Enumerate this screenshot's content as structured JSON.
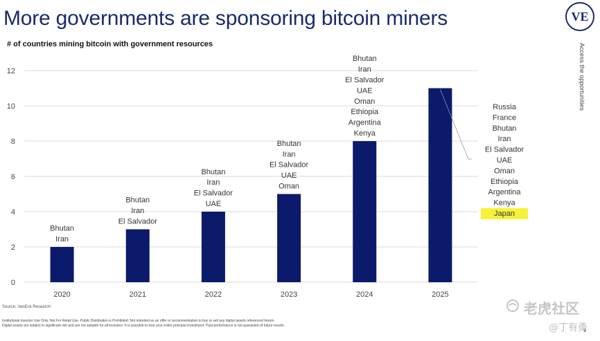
{
  "slide": {
    "title": "More governments are sponsoring bitcoin miners",
    "logo_text": "VE",
    "side_text": "Access the opportunities",
    "source": "Source: VanEck Research",
    "disclaimer_line1": "Institutional Investor Use Only. Not For Retail Use. Public Distribution is Prohibited. Not intended as an offer or recommendation to buy or sell any digital assets referenced herein.",
    "disclaimer_line2": "Digital assets are subject to significant risk and are not suitable for all investors. It is possible to lose your entire principal investment. Past performance is not guarantee of future results.",
    "page_number": "9",
    "watermark_text": "老虎社区",
    "watermark_user": "@丁有勇"
  },
  "colors": {
    "bar": "#0c1a6b",
    "title": "#1a2a6c",
    "highlight": "#f6f23a",
    "grid": "#d9d9d9"
  },
  "chart_data": {
    "type": "bar",
    "title": "# of countries mining bitcoin with government resources",
    "xlabel": "",
    "ylabel": "",
    "categories": [
      "2020",
      "2021",
      "2022",
      "2023",
      "2024",
      "2025"
    ],
    "values": [
      2,
      3,
      4,
      5,
      8,
      11
    ],
    "ylim": [
      0,
      12
    ],
    "yticks": [
      0,
      2,
      4,
      6,
      8,
      10,
      12
    ],
    "grid": true,
    "legend": "none",
    "bar_labels": [
      [
        "Bhutan",
        "Iran"
      ],
      [
        "Bhutan",
        "Iran",
        "El Salvador"
      ],
      [
        "Bhutan",
        "Iran",
        "El Salvador",
        "UAE"
      ],
      [
        "Bhutan",
        "Iran",
        "El Salvador",
        "UAE",
        "Oman"
      ],
      [
        "Bhutan",
        "Iran",
        "El Salvador",
        "UAE",
        "Oman",
        "Ethiopia",
        "Argentina",
        "Kenya"
      ],
      [
        "Russia",
        "France",
        "Bhutan",
        "Iran",
        "El Salvador",
        "UAE",
        "Oman",
        "Ethiopia",
        "Argentina",
        "Kenya",
        "Japan"
      ]
    ],
    "highlighted_label": "Japan"
  }
}
